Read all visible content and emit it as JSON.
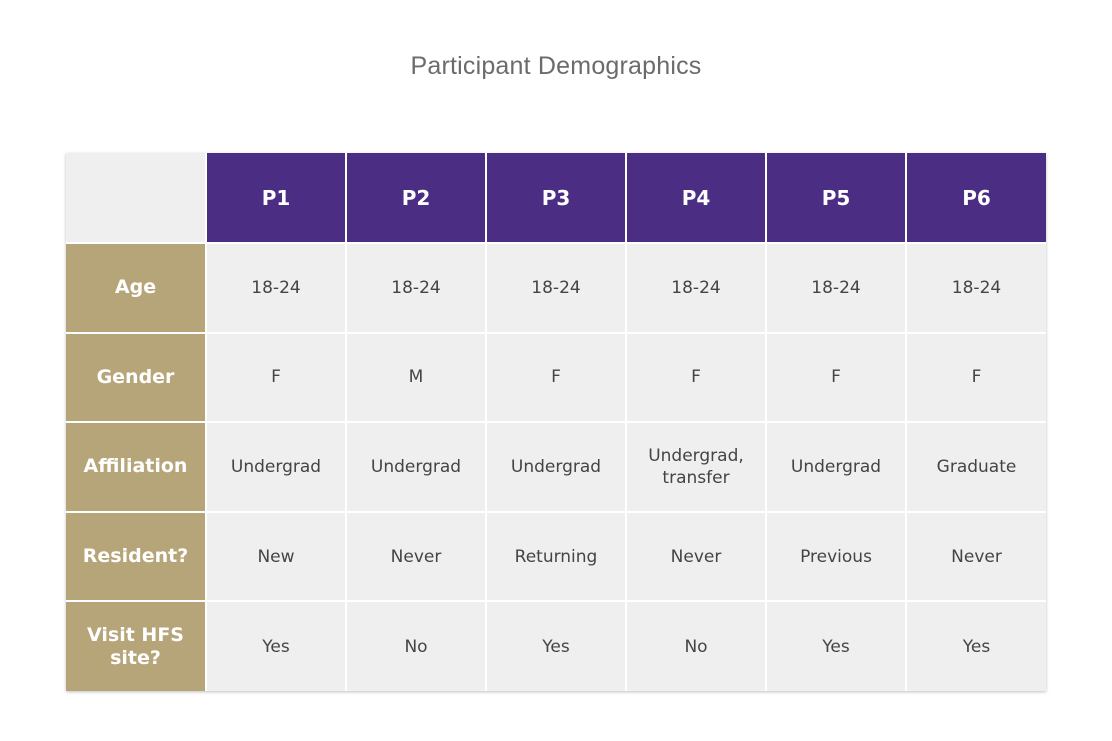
{
  "title": "Participant Demographics",
  "colors": {
    "header_purple": "#4b2e83",
    "label_gold": "#b7a57a",
    "cell_gray": "#efefef",
    "text_dark": "#444444"
  },
  "table": {
    "columns": [
      "P1",
      "P2",
      "P3",
      "P4",
      "P5",
      "P6"
    ],
    "rows": [
      {
        "label": "Age",
        "values": [
          "18-24",
          "18-24",
          "18-24",
          "18-24",
          "18-24",
          "18-24"
        ]
      },
      {
        "label": "Gender",
        "values": [
          "F",
          "M",
          "F",
          "F",
          "F",
          "F"
        ]
      },
      {
        "label": "Affiliation",
        "values": [
          "Undergrad",
          "Undergrad",
          "Undergrad",
          "Undergrad, transfer",
          "Undergrad",
          "Graduate"
        ]
      },
      {
        "label": "Resident?",
        "values": [
          "New",
          "Never",
          "Returning",
          "Never",
          "Previous",
          "Never"
        ]
      },
      {
        "label": "Visit HFS site?",
        "values": [
          "Yes",
          "No",
          "Yes",
          "No",
          "Yes",
          "Yes"
        ]
      }
    ]
  }
}
